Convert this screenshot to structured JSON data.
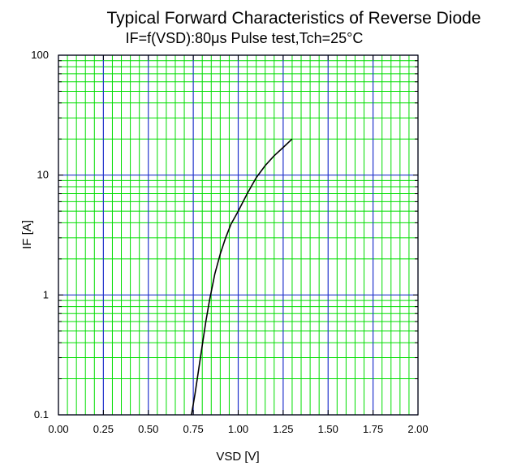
{
  "chart_data": {
    "type": "line",
    "title": "Typical Forward Characteristics of Reverse Diode",
    "subtitle": "IF=f(VSD):80μs Pulse test,Tch=25°C",
    "xlabel": "VSD [V]",
    "ylabel": "IF [A]",
    "x_scale": "linear",
    "y_scale": "log",
    "xlim": [
      0,
      2
    ],
    "ylim": [
      0.1,
      100
    ],
    "x_ticks": [
      0,
      0.25,
      0.5,
      0.75,
      1.0,
      1.25,
      1.5,
      1.75,
      2.0
    ],
    "x_tick_labels": [
      "0.00",
      "0.25",
      "0.50",
      "0.75",
      "1.00",
      "1.25",
      "1.50",
      "1.75",
      "2.00"
    ],
    "y_ticks": [
      0.1,
      1,
      10,
      100
    ],
    "y_tick_labels": [
      "0.1",
      "1",
      "10",
      "100"
    ],
    "grid": true,
    "colors": {
      "major_grid": "#2233cc",
      "minor_grid": "#00dd00",
      "curve": "#000000",
      "frame": "#000000"
    },
    "series": [
      {
        "x": [
          0.74,
          0.76,
          0.78,
          0.8,
          0.82,
          0.84,
          0.87,
          0.9,
          0.93,
          0.96,
          1.0,
          1.05,
          1.1,
          1.15,
          1.2,
          1.25,
          1.3
        ],
        "y": [
          0.1,
          0.15,
          0.24,
          0.38,
          0.6,
          0.9,
          1.5,
          2.2,
          3.0,
          3.9,
          5.0,
          7.0,
          9.5,
          12.0,
          14.5,
          17.0,
          20.0
        ]
      }
    ]
  }
}
